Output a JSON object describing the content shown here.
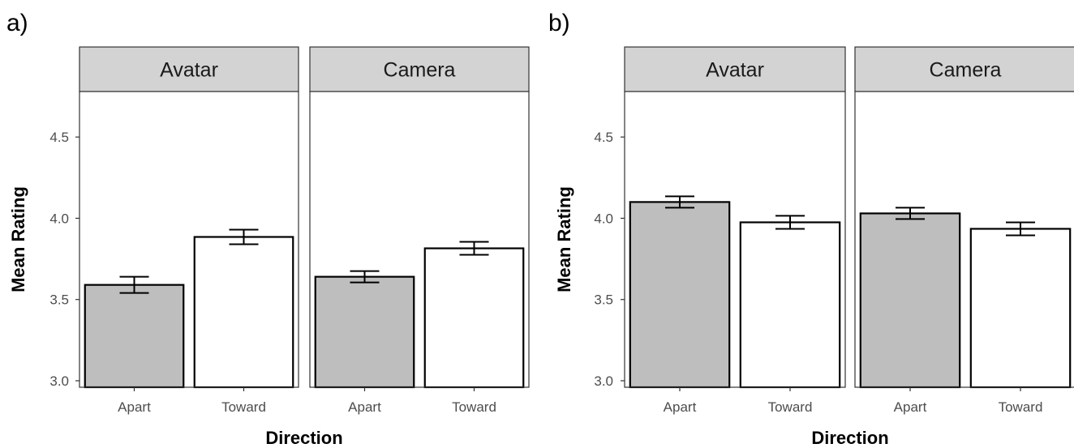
{
  "chart_data": [
    {
      "type": "bar",
      "tag": "a)",
      "xlabel": "Direction",
      "ylabel": "Mean Rating",
      "ylim": [
        2.96,
        4.78
      ],
      "yticks": [
        "3.0",
        "3.5",
        "4.0",
        "4.5"
      ],
      "grid": false,
      "fill_colors": {
        "Apart": "#bebebe",
        "Toward": "#ffffff"
      },
      "categories": [
        "Apart",
        "Toward"
      ],
      "facets": [
        {
          "name": "Avatar",
          "values": [
            3.59,
            3.885
          ],
          "errors": [
            0.05,
            0.045
          ]
        },
        {
          "name": "Camera",
          "values": [
            3.64,
            3.815
          ],
          "errors": [
            0.035,
            0.04
          ]
        }
      ]
    },
    {
      "type": "bar",
      "tag": "b)",
      "xlabel": "Direction",
      "ylabel": "Mean Rating",
      "ylim": [
        2.96,
        4.78
      ],
      "yticks": [
        "3.0",
        "3.5",
        "4.0",
        "4.5"
      ],
      "grid": false,
      "fill_colors": {
        "Apart": "#bebebe",
        "Toward": "#ffffff"
      },
      "categories": [
        "Apart",
        "Toward"
      ],
      "facets": [
        {
          "name": "Avatar",
          "values": [
            4.1,
            3.975
          ],
          "errors": [
            0.035,
            0.04
          ]
        },
        {
          "name": "Camera",
          "values": [
            4.03,
            3.935
          ],
          "errors": [
            0.035,
            0.04
          ]
        }
      ]
    }
  ]
}
